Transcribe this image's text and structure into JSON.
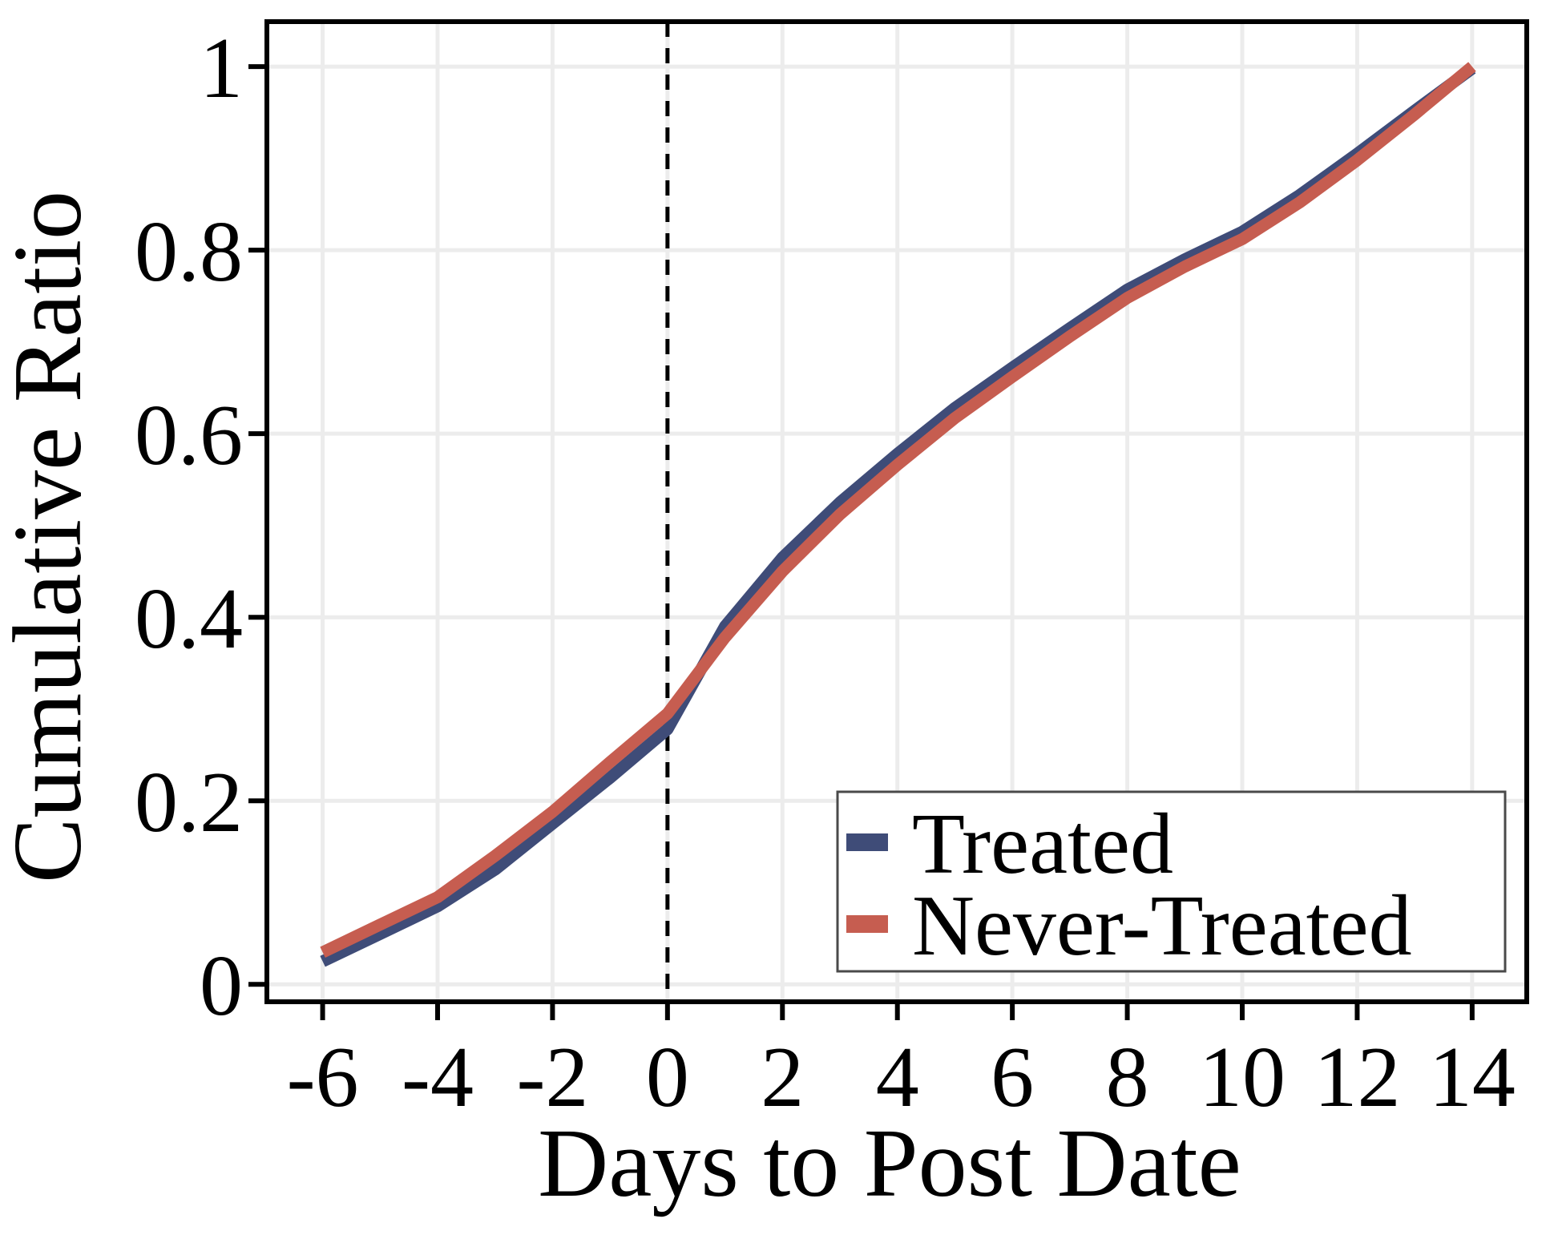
{
  "chart_data": {
    "type": "line",
    "title": "",
    "xlabel": "Days to Post Date",
    "ylabel": "Cumulative Ratio",
    "x": [
      -6,
      -5,
      -4,
      -3,
      -2,
      -1,
      0,
      1,
      2,
      3,
      4,
      5,
      6,
      7,
      8,
      9,
      10,
      11,
      12,
      13,
      14
    ],
    "series": [
      {
        "name": "Treated",
        "color": "#3F4C78",
        "values": [
          0.025,
          0.055,
          0.085,
          0.125,
          0.175,
          0.225,
          0.278,
          0.39,
          0.465,
          0.525,
          0.578,
          0.628,
          0.672,
          0.715,
          0.757,
          0.79,
          0.82,
          0.86,
          0.905,
          0.952,
          0.998
        ]
      },
      {
        "name": "Never-Treated",
        "color": "#C65D50",
        "values": [
          0.035,
          0.065,
          0.095,
          0.14,
          0.188,
          0.242,
          0.295,
          0.378,
          0.45,
          0.512,
          0.566,
          0.617,
          0.662,
          0.706,
          0.748,
          0.782,
          0.812,
          0.852,
          0.898,
          0.948,
          1.0
        ]
      }
    ],
    "x_ticks": [
      -6,
      -4,
      -2,
      0,
      2,
      4,
      6,
      8,
      10,
      12,
      14
    ],
    "y_ticks": [
      0,
      0.2,
      0.4,
      0.6,
      0.8,
      1
    ],
    "xlim": [
      -6.97,
      14.95
    ],
    "ylim": [
      -0.019,
      1.049
    ],
    "grid": true,
    "vline_x": 0,
    "legend_position": "lower right"
  },
  "colors": {
    "grid": "#ECECEC",
    "axis": "#000000",
    "vline": "#000000",
    "legend_border": "#4A4A4A",
    "background": "#FFFFFF"
  }
}
